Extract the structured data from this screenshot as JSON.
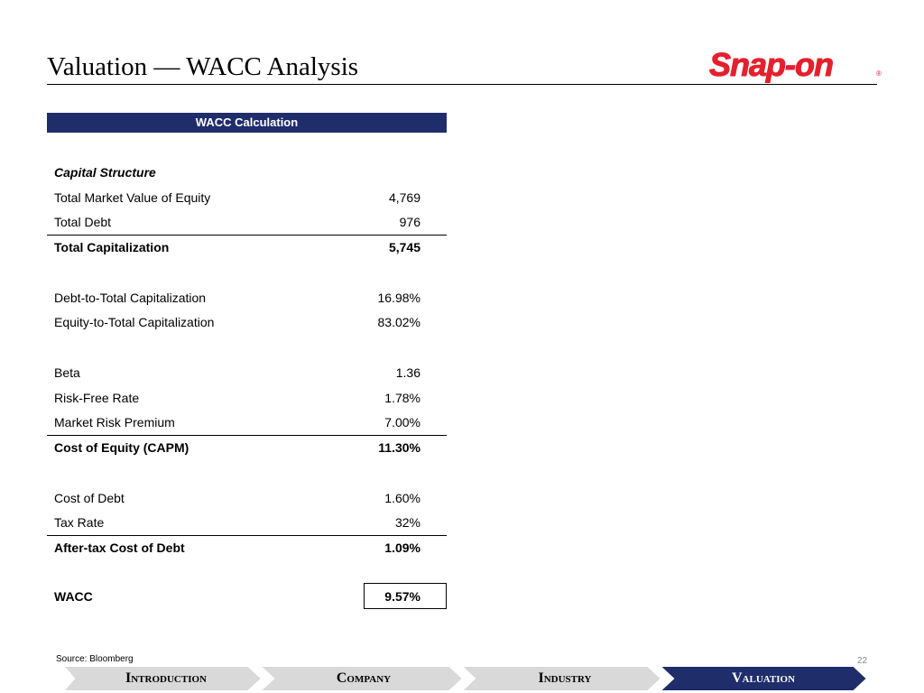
{
  "title": "Valuation — WACC Analysis",
  "logo_text": "Snap-on",
  "table": {
    "header": "WACC Calculation",
    "section_label": "Capital Structure",
    "rows": [
      {
        "label": "Total Market Value of Equity",
        "value": "4,769"
      },
      {
        "label": "Total Debt",
        "value": "976"
      },
      {
        "label": "Total Capitalization",
        "value": "5,745"
      },
      {
        "label": "Debt-to-Total Capitalization",
        "value": "16.98%"
      },
      {
        "label": "Equity-to-Total Capitalization",
        "value": "83.02%"
      },
      {
        "label": "Beta",
        "value": "1.36"
      },
      {
        "label": "Risk-Free Rate",
        "value": "1.78%"
      },
      {
        "label": "Market Risk Premium",
        "value": "7.00%"
      },
      {
        "label": "Cost of Equity (CAPM)",
        "value": "11.30%"
      },
      {
        "label": "Cost of Debt",
        "value": "1.60%"
      },
      {
        "label": "Tax Rate",
        "value": "32%"
      },
      {
        "label": "After-tax Cost of Debt",
        "value": "1.09%"
      },
      {
        "label": "WACC",
        "value": "9.57%"
      }
    ]
  },
  "source": "Source: Bloomberg",
  "page_number": "22",
  "nav": {
    "items": [
      "Introduction",
      "Company",
      "Industry",
      "Valuation"
    ],
    "active_color": "#1f2d6b",
    "inactive_color": "#d9d9d9"
  },
  "colors": {
    "header_bg": "#1f2d6b",
    "logo_red": "#e4202e"
  }
}
